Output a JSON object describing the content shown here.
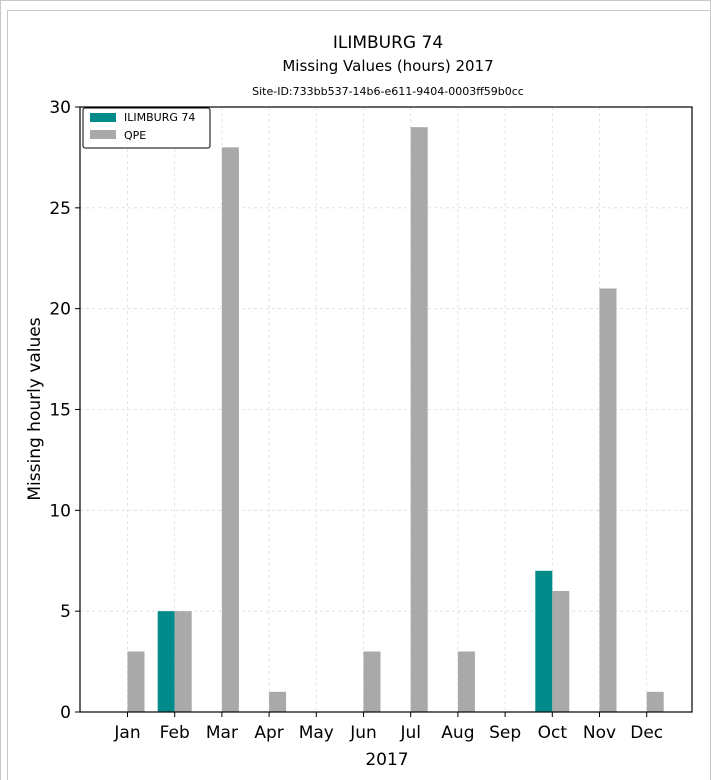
{
  "chart_data": {
    "type": "bar",
    "title": "ILIMBURG 74",
    "subtitle": "Missing Values (hours) 2017",
    "site_id": "Site-ID:733bb537-14b6-e611-9404-0003ff59b0cc",
    "xlabel": "2017",
    "ylabel": "Missing hourly values",
    "categories": [
      "Jan",
      "Feb",
      "Mar",
      "Apr",
      "May",
      "Jun",
      "Jul",
      "Aug",
      "Sep",
      "Oct",
      "Nov",
      "Dec"
    ],
    "ylim": [
      0,
      30
    ],
    "yticks": [
      0,
      5,
      10,
      15,
      20,
      25,
      30
    ],
    "grid": true,
    "legend_position": "top-left",
    "series": [
      {
        "name": "ILIMBURG 74",
        "color": "#008b8b",
        "values": [
          0,
          5,
          0,
          0,
          0,
          0,
          0,
          0,
          0,
          7,
          0,
          0
        ]
      },
      {
        "name": "QPE",
        "color": "#a9a9a9",
        "values": [
          3,
          5,
          28,
          1,
          0,
          3,
          29,
          3,
          0,
          6,
          21,
          1
        ]
      }
    ]
  }
}
